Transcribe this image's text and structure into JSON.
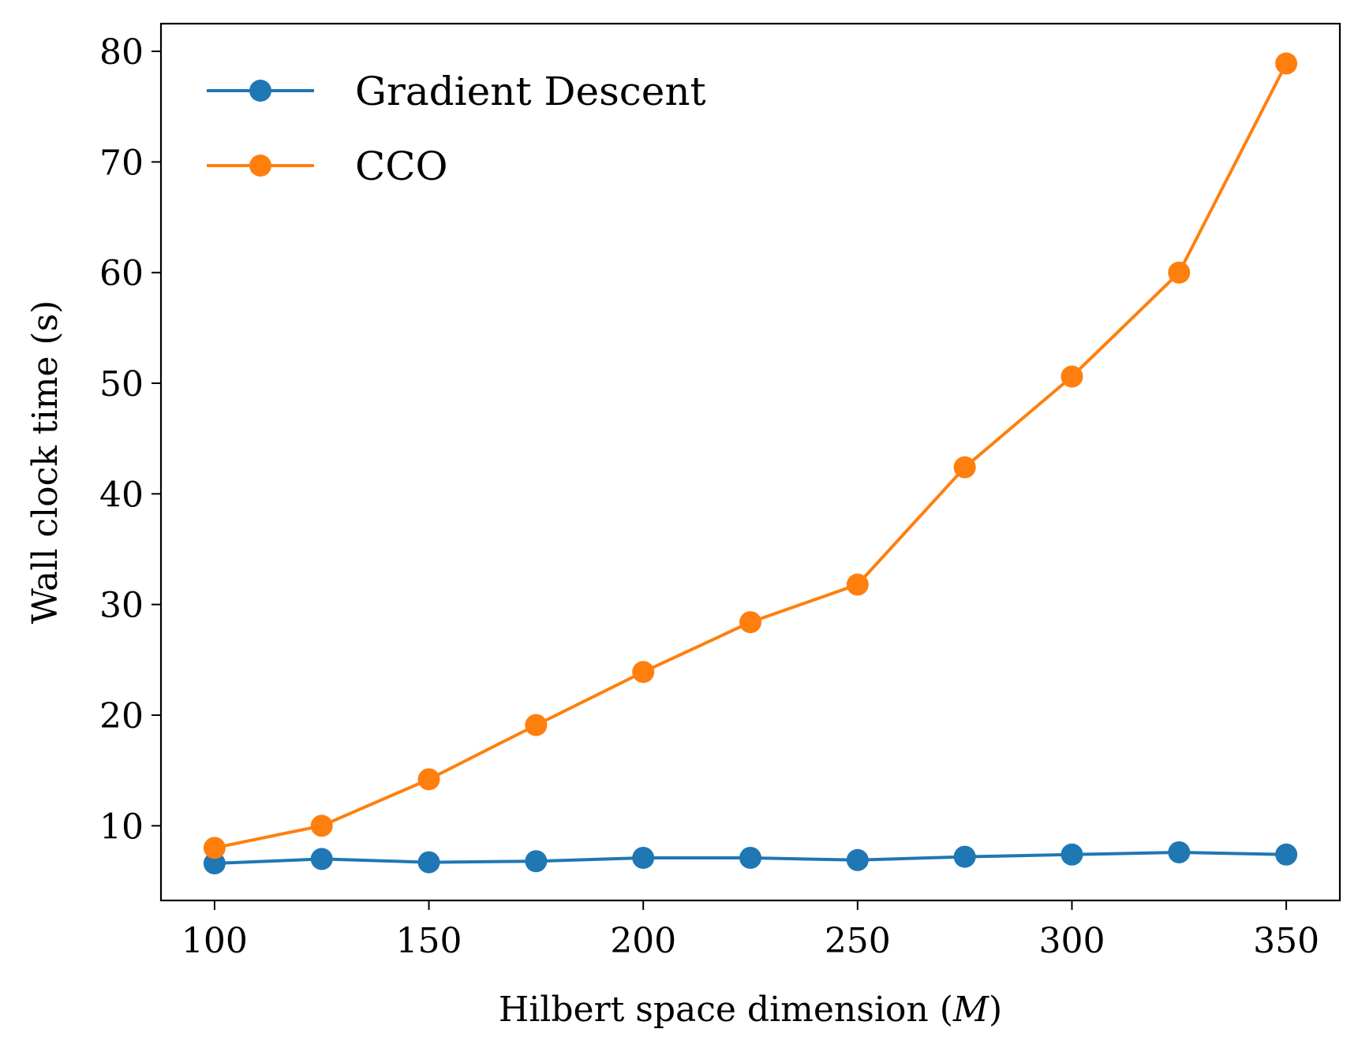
{
  "chart_data": {
    "type": "line",
    "title": "",
    "xlabel_main": "Hilbert space dimension (",
    "xlabel_var": "M",
    "xlabel_close": ")",
    "ylabel": "Wall clock time (s)",
    "x": [
      100,
      125,
      150,
      175,
      200,
      225,
      250,
      275,
      300,
      325,
      350
    ],
    "xlim": [
      87.5,
      362.5
    ],
    "ylim": [
      3.25,
      82.5
    ],
    "xticks": [
      100,
      150,
      200,
      250,
      300,
      350
    ],
    "yticks": [
      10,
      20,
      30,
      40,
      50,
      60,
      70,
      80
    ],
    "grid": false,
    "legend_position": "top-left",
    "series": [
      {
        "name": "Gradient Descent",
        "color": "#1f77b4",
        "values": [
          6.6,
          7.0,
          6.7,
          6.8,
          7.1,
          7.1,
          6.9,
          7.2,
          7.4,
          7.6,
          7.4
        ]
      },
      {
        "name": "CCO",
        "color": "#ff7f0e",
        "values": [
          8.0,
          10.0,
          14.2,
          19.1,
          23.9,
          28.4,
          31.8,
          42.4,
          50.6,
          60.0,
          78.9
        ]
      }
    ]
  }
}
